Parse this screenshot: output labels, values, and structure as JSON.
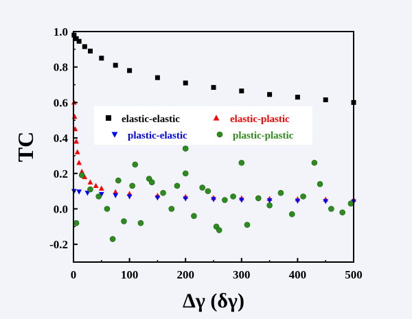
{
  "chart_data": {
    "type": "scatter",
    "xlabel": "Δγ (δγ)",
    "ylabel": "TC",
    "xlim": [
      0,
      500
    ],
    "ylim": [
      -0.3,
      1.0
    ],
    "x_ticks": [
      "0",
      "100",
      "200",
      "300",
      "400",
      "500"
    ],
    "y_ticks": [
      "-0.2",
      "0.0",
      "0.2",
      "0.4",
      "0.6",
      "0.8",
      "1.0"
    ],
    "x_tick_values": [
      0,
      100,
      200,
      300,
      400,
      500
    ],
    "y_tick_values": [
      -0.2,
      0.0,
      0.2,
      0.4,
      0.6,
      0.8,
      1.0
    ],
    "legend_position": "center",
    "series": [
      {
        "name": "elastic-elastic",
        "marker": "square",
        "color": "#000000",
        "x": [
          1,
          5,
          10,
          20,
          30,
          50,
          75,
          100,
          150,
          200,
          250,
          300,
          350,
          400,
          450,
          500
        ],
        "y": [
          0.98,
          0.96,
          0.945,
          0.915,
          0.89,
          0.85,
          0.81,
          0.78,
          0.74,
          0.71,
          0.685,
          0.665,
          0.645,
          0.63,
          0.615,
          0.6
        ]
      },
      {
        "name": "elastic-plastic",
        "marker": "triangle-up",
        "color": "#ff0000",
        "x": [
          1,
          2,
          3,
          5,
          7,
          10,
          15,
          20,
          30,
          40,
          50,
          75,
          100,
          150,
          200,
          250,
          300,
          350,
          400,
          450,
          500
        ],
        "y": [
          0.6,
          0.52,
          0.45,
          0.38,
          0.32,
          0.26,
          0.21,
          0.18,
          0.15,
          0.13,
          0.115,
          0.095,
          0.085,
          0.075,
          0.068,
          0.063,
          0.06,
          0.057,
          0.055,
          0.053,
          0.052
        ]
      },
      {
        "name": "plastic-elastic",
        "marker": "triangle-down",
        "color": "#0000ff",
        "x": [
          1,
          10,
          25,
          50,
          75,
          100,
          150,
          200,
          250,
          300,
          350,
          400,
          450,
          500
        ],
        "y": [
          0.1,
          0.097,
          0.09,
          0.083,
          0.076,
          0.07,
          0.063,
          0.058,
          0.054,
          0.05,
          0.047,
          0.045,
          0.043,
          0.041
        ]
      },
      {
        "name": "plastic-plastic",
        "marker": "sphere",
        "color": "#2e8b1e",
        "x": [
          5,
          15,
          30,
          45,
          60,
          70,
          80,
          90,
          105,
          110,
          120,
          135,
          140,
          160,
          175,
          185,
          200,
          200,
          215,
          230,
          240,
          255,
          260,
          270,
          285,
          300,
          310,
          330,
          350,
          370,
          390,
          410,
          430,
          440,
          460,
          480,
          495
        ],
        "y": [
          -0.08,
          0.19,
          0.11,
          0.07,
          0.0,
          -0.17,
          0.16,
          -0.07,
          0.13,
          0.25,
          -0.08,
          0.17,
          0.15,
          0.09,
          0.0,
          0.13,
          0.34,
          0.2,
          -0.04,
          0.12,
          0.1,
          -0.1,
          -0.12,
          0.05,
          0.07,
          0.26,
          -0.09,
          0.06,
          0.02,
          0.09,
          -0.03,
          0.07,
          0.26,
          0.14,
          0.0,
          -0.02,
          0.03
        ]
      }
    ]
  }
}
